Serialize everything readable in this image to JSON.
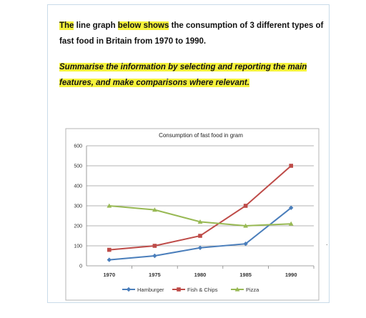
{
  "task": {
    "line1_hl1": "The",
    "line1_a": " line graph ",
    "line1_hl2": "below shows",
    "line1_b": " the consumption of 3 different types of fast food in Britain from 1970 to 1990.",
    "line2": "Summarise the information by selecting and reporting the main features, and make comparisons where relevant."
  },
  "chart_data": {
    "type": "line",
    "title": "Consumption of fast food in gram",
    "xlabel": "",
    "ylabel": "",
    "categories": [
      "1970",
      "1975",
      "1980",
      "1985",
      "1990"
    ],
    "ylim": [
      0,
      600
    ],
    "yticks": [
      0,
      100,
      200,
      300,
      400,
      500,
      600
    ],
    "grid": true,
    "legend": "bottom",
    "series": [
      {
        "name": "Hamburger",
        "values": [
          30,
          50,
          90,
          110,
          290
        ],
        "color": "#4a7ebb",
        "marker": "diamond"
      },
      {
        "name": "Fish & Chips",
        "values": [
          80,
          100,
          150,
          300,
          500
        ],
        "color": "#be4b48",
        "marker": "square"
      },
      {
        "name": "Pizza",
        "values": [
          300,
          280,
          220,
          200,
          210
        ],
        "color": "#98b954",
        "marker": "triangle"
      }
    ]
  },
  "extra": {
    "dot": "."
  }
}
